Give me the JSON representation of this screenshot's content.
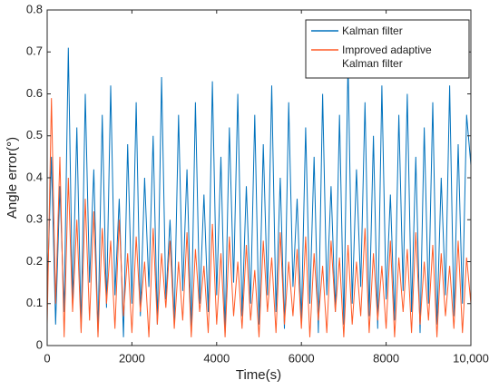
{
  "chart_data": {
    "type": "line",
    "xlabel": "Time(s)",
    "ylabel": "Angle error(°)",
    "x": [
      0,
      100,
      200,
      300,
      400,
      500,
      600,
      700,
      800,
      900,
      1000,
      1100,
      1200,
      1300,
      1400,
      1500,
      1600,
      1700,
      1800,
      1900,
      2000,
      2100,
      2200,
      2300,
      2400,
      2500,
      2600,
      2700,
      2800,
      2900,
      3000,
      3100,
      3200,
      3300,
      3400,
      3500,
      3600,
      3700,
      3800,
      3900,
      4000,
      4100,
      4200,
      4300,
      4400,
      4500,
      4600,
      4700,
      4800,
      4900,
      5000,
      5100,
      5200,
      5300,
      5400,
      5500,
      5600,
      5700,
      5800,
      5900,
      6000,
      6100,
      6200,
      6300,
      6400,
      6500,
      6600,
      6700,
      6800,
      6900,
      7000,
      7100,
      7200,
      7300,
      7400,
      7500,
      7600,
      7700,
      7800,
      7900,
      8000,
      8100,
      8200,
      8300,
      8400,
      8500,
      8600,
      8700,
      8800,
      8900,
      9000,
      9100,
      9200,
      9300,
      9400,
      9500,
      9600,
      9700,
      9800,
      9900,
      10000
    ],
    "series": [
      {
        "name": "Kalman filter",
        "color": "#0072bd",
        "values": [
          0.12,
          0.45,
          0.05,
          0.38,
          0.08,
          0.71,
          0.1,
          0.52,
          0.04,
          0.6,
          0.15,
          0.42,
          0.03,
          0.55,
          0.09,
          0.62,
          0.12,
          0.35,
          0.02,
          0.48,
          0.1,
          0.58,
          0.07,
          0.4,
          0.14,
          0.5,
          0.05,
          0.64,
          0.11,
          0.3,
          0.06,
          0.55,
          0.13,
          0.42,
          0.04,
          0.58,
          0.1,
          0.36,
          0.08,
          0.63,
          0.12,
          0.45,
          0.03,
          0.52,
          0.15,
          0.6,
          0.07,
          0.38,
          0.1,
          0.55,
          0.05,
          0.48,
          0.12,
          0.62,
          0.08,
          0.4,
          0.04,
          0.58,
          0.14,
          0.35,
          0.06,
          0.52,
          0.1,
          0.45,
          0.03,
          0.6,
          0.12,
          0.38,
          0.08,
          0.55,
          0.05,
          0.68,
          0.1,
          0.42,
          0.14,
          0.58,
          0.07,
          0.5,
          0.04,
          0.62,
          0.11,
          0.36,
          0.06,
          0.55,
          0.13,
          0.6,
          0.08,
          0.45,
          0.03,
          0.52,
          0.1,
          0.58,
          0.05,
          0.4,
          0.12,
          0.62,
          0.07,
          0.48,
          0.1,
          0.55,
          0.43
        ]
      },
      {
        "name": "Improved adaptive Kalman filter",
        "color": "#ff5a26",
        "values": [
          0.05,
          0.59,
          0.1,
          0.45,
          0.02,
          0.4,
          0.08,
          0.3,
          0.03,
          0.35,
          0.06,
          0.32,
          0.02,
          0.28,
          0.1,
          0.25,
          0.04,
          0.3,
          0.07,
          0.22,
          0.03,
          0.26,
          0.08,
          0.2,
          0.02,
          0.28,
          0.05,
          0.22,
          0.09,
          0.25,
          0.04,
          0.2,
          0.06,
          0.27,
          0.02,
          0.23,
          0.08,
          0.19,
          0.03,
          0.29,
          0.05,
          0.22,
          0.02,
          0.26,
          0.07,
          0.2,
          0.04,
          0.24,
          0.06,
          0.18,
          0.02,
          0.25,
          0.08,
          0.21,
          0.03,
          0.27,
          0.05,
          0.2,
          0.07,
          0.23,
          0.04,
          0.26,
          0.02,
          0.22,
          0.06,
          0.19,
          0.03,
          0.25,
          0.08,
          0.21,
          0.02,
          0.24,
          0.05,
          0.2,
          0.07,
          0.28,
          0.03,
          0.22,
          0.06,
          0.19,
          0.04,
          0.25,
          0.02,
          0.21,
          0.08,
          0.23,
          0.03,
          0.27,
          0.05,
          0.2,
          0.06,
          0.24,
          0.02,
          0.22,
          0.07,
          0.19,
          0.04,
          0.25,
          0.03,
          0.21,
          0.1
        ]
      }
    ],
    "xlim": [
      0,
      10000
    ],
    "xticks": [
      0,
      2000,
      4000,
      6000,
      8000,
      {
        "value": 10000,
        "label": "10,000"
      }
    ],
    "ylim": [
      0,
      0.8
    ],
    "yticks": [
      0,
      0.1,
      0.2,
      0.3,
      0.4,
      0.5,
      0.6,
      0.7,
      0.8
    ],
    "grid": false,
    "legend": "upper right"
  }
}
